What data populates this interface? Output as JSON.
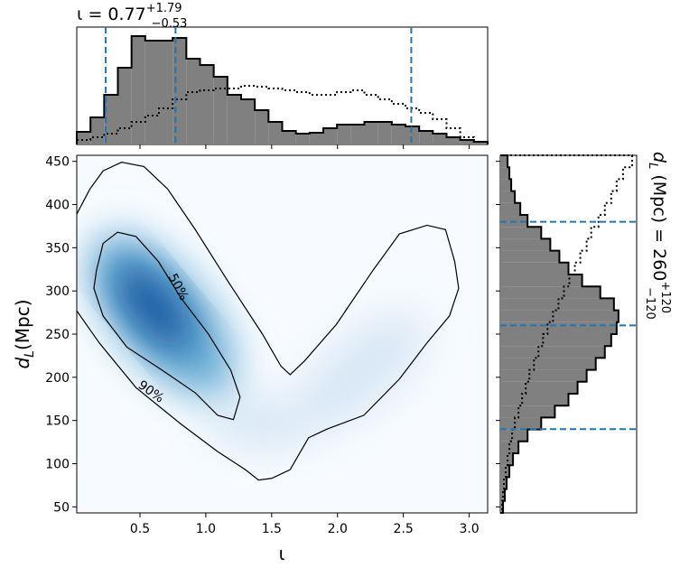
{
  "chart_data": [
    {
      "type": "density-contour",
      "xlabel": "ι",
      "ylabel": {
        "symbol": "d",
        "sub": "L",
        "unit": "(Mpc)"
      },
      "xlim": [
        0.02,
        3.14
      ],
      "ylim": [
        43,
        457
      ],
      "xticks": [
        0.5,
        {
          "value": 1,
          "label": "1.0"
        },
        1.5,
        {
          "value": 2,
          "label": "2.0"
        },
        2.5,
        {
          "value": 3,
          "label": "3.0"
        }
      ],
      "yticks": [
        50,
        100,
        150,
        200,
        250,
        300,
        350,
        400,
        450
      ],
      "color": "#08519c",
      "contours": [
        {
          "label": "50%",
          "closed": true,
          "x": [
            0.17,
            0.22,
            0.33,
            0.47,
            0.64,
            0.81,
            1.02,
            1.19,
            1.26,
            1.21,
            1.09,
            0.92,
            0.67,
            0.4,
            0.22,
            0.15
          ],
          "y": [
            324,
            355,
            368,
            363,
            334,
            292,
            250,
            208,
            177,
            151,
            156,
            182,
            208,
            235,
            271,
            303
          ]
        },
        {
          "label": "90%",
          "closed": false,
          "x": [
            0.02,
            0.12,
            0.22,
            0.36,
            0.53,
            0.71,
            0.92,
            1.16,
            1.43,
            1.57,
            1.64,
            1.75,
            1.99,
            2.27,
            2.47,
            2.68,
            2.82,
            2.89,
            2.92,
            2.85,
            2.68,
            2.47,
            2.2,
            1.92,
            1.78,
            1.64,
            1.5,
            1.4,
            1.3,
            1.09,
            0.81,
            0.47,
            0.19,
            0.02
          ],
          "y": [
            389,
            418,
            439,
            449,
            444,
            418,
            371,
            313,
            250,
            213,
            203,
            219,
            261,
            324,
            366,
            376,
            371,
            334,
            303,
            271,
            240,
            198,
            156,
            140,
            130,
            93,
            83,
            81,
            93,
            114,
            146,
            188,
            240,
            277
          ]
        }
      ]
    },
    {
      "type": "histogram",
      "orientation": "vertical",
      "title": {
        "main": "ι = 0.77",
        "upper": "+1.79",
        "lower": "−0.53"
      },
      "xlim": [
        0.02,
        3.14
      ],
      "ylim": [
        0,
        130
      ],
      "bins": [
        0.02,
        0.124,
        0.228,
        0.332,
        0.436,
        0.54,
        0.644,
        0.748,
        0.852,
        0.956,
        1.06,
        1.164,
        1.268,
        1.372,
        1.476,
        1.58,
        1.684,
        1.788,
        1.892,
        1.996,
        2.1,
        2.204,
        2.308,
        2.412,
        2.516,
        2.62,
        2.724,
        2.828,
        2.932,
        3.036,
        3.14
      ],
      "series": [
        {
          "color": "#808080",
          "linestyle": "solid",
          "values": [
            14,
            30,
            55,
            85,
            120,
            115,
            115,
            118,
            95,
            88,
            75,
            55,
            50,
            38,
            25,
            15,
            12,
            13,
            18,
            22,
            22,
            25,
            25,
            22,
            20,
            15,
            12,
            8,
            5,
            3
          ]
        },
        {
          "color": "#000000",
          "linestyle": "dotted",
          "values": [
            5,
            8,
            12,
            18,
            25,
            32,
            40,
            50,
            58,
            60,
            62,
            62,
            65,
            64,
            62,
            60,
            58,
            55,
            55,
            58,
            60,
            55,
            50,
            45,
            40,
            35,
            28,
            18,
            8,
            3
          ]
        }
      ],
      "quantiles": [
        0.24,
        0.77,
        2.56
      ],
      "quantile_color": "#1f77b4"
    },
    {
      "type": "histogram",
      "orientation": "horizontal",
      "title": {
        "symbol": "d",
        "sub": "L",
        "main": " (Mpc) = 260",
        "upper": "+120",
        "lower": "−120"
      },
      "xlim": [
        0,
        150
      ],
      "ylim": [
        43,
        457
      ],
      "bins": [
        43,
        56.8,
        70.6,
        84.4,
        98.2,
        112,
        125.8,
        139.6,
        153.4,
        167.2,
        181,
        194.8,
        208.6,
        222.4,
        236.2,
        250,
        263.8,
        277.6,
        291.4,
        305.2,
        319,
        332.8,
        346.6,
        360.4,
        374.2,
        388,
        401.8,
        415.6,
        429.4,
        443.2,
        457
      ],
      "series": [
        {
          "color": "#808080",
          "linestyle": "solid",
          "values": [
            3,
            5,
            7,
            10,
            14,
            20,
            30,
            45,
            60,
            75,
            85,
            95,
            105,
            115,
            122,
            128,
            130,
            125,
            110,
            90,
            75,
            65,
            55,
            45,
            30,
            22,
            16,
            12,
            10,
            8
          ]
        },
        {
          "color": "#000000",
          "linestyle": "dotted",
          "values": [
            2,
            3,
            4,
            6,
            8,
            10,
            13,
            16,
            20,
            24,
            28,
            32,
            37,
            42,
            47,
            52,
            58,
            64,
            70,
            76,
            82,
            88,
            95,
            100,
            108,
            115,
            122,
            128,
            135,
            145
          ]
        }
      ],
      "quantiles": [
        140,
        260,
        380
      ],
      "quantile_color": "#1f77b4"
    }
  ]
}
